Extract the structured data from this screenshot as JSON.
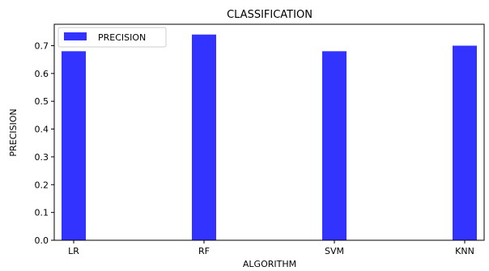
{
  "chart_data": {
    "type": "bar",
    "title": "CLASSIFICATION",
    "xlabel": "ALGORITHM",
    "ylabel": "PRECISION",
    "categories": [
      "LR",
      "RF",
      "SVM",
      "KNN"
    ],
    "series": [
      {
        "name": "PRECISION",
        "values": [
          0.68,
          0.74,
          0.68,
          0.7
        ],
        "color": "#3333ff"
      }
    ],
    "ylim": [
      0,
      0.777
    ],
    "yticks": [
      "0.0",
      "0.1",
      "0.2",
      "0.3",
      "0.4",
      "0.5",
      "0.6",
      "0.7"
    ],
    "grid": false,
    "legend_position": "top-left"
  }
}
